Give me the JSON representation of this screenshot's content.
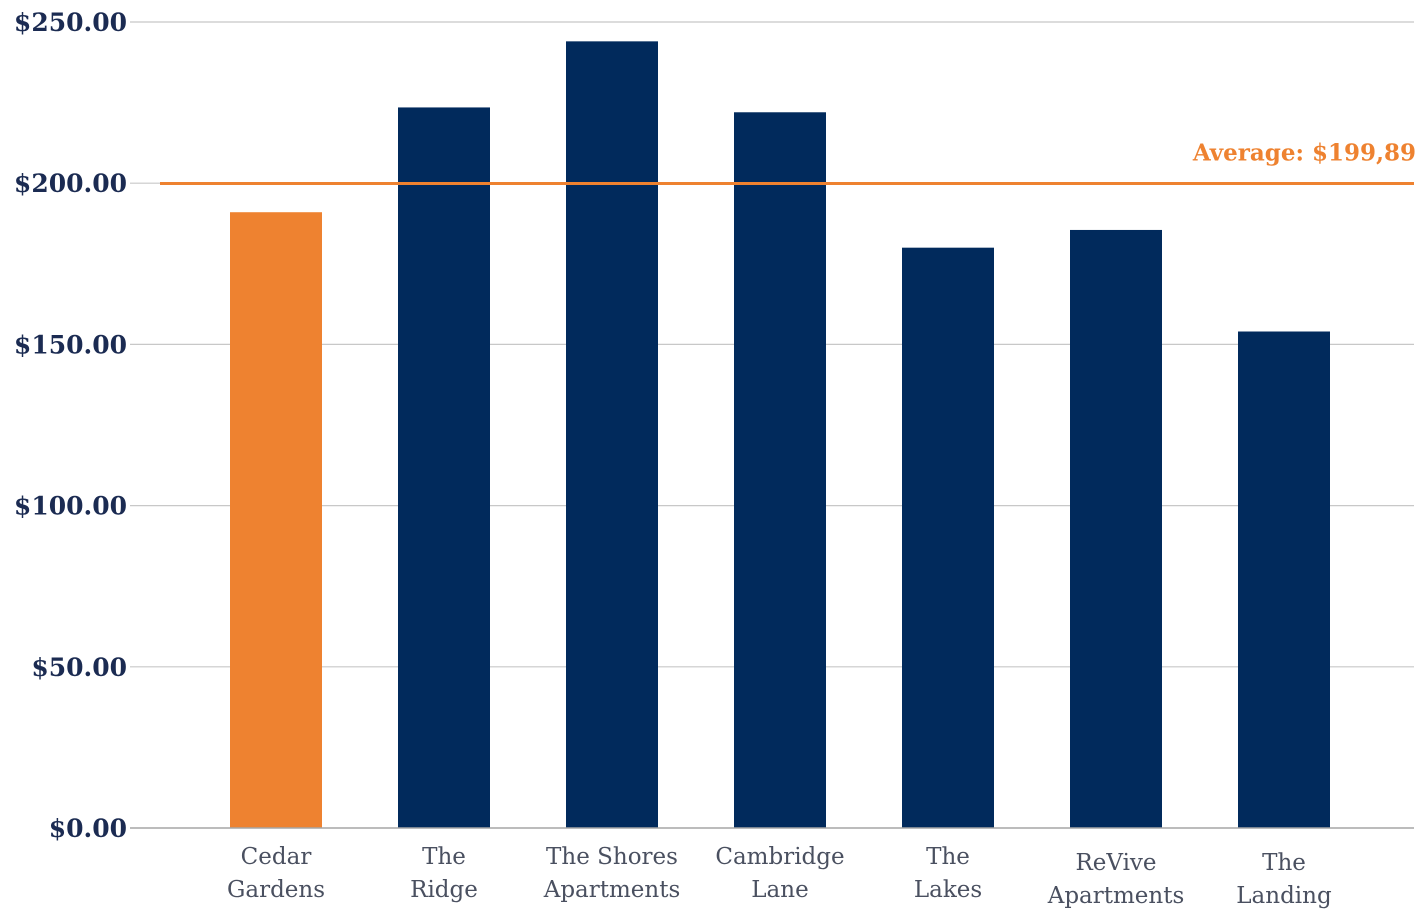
{
  "chart_data": {
    "type": "bar",
    "title": "",
    "xlabel": "",
    "ylabel": "",
    "categories": [
      [
        "Cedar",
        "Gardens"
      ],
      [
        "The",
        "Ridge"
      ],
      [
        "The Shores",
        "Apartments"
      ],
      [
        "Cambridge",
        "Lane"
      ],
      [
        "The",
        "Lakes"
      ],
      [
        "ReVive",
        "Apartments"
      ],
      [
        "The",
        "Landing"
      ]
    ],
    "values": [
      191,
      223.5,
      244,
      222,
      180,
      185.5,
      154
    ],
    "highlight_index": 0,
    "ylim": [
      0,
      250
    ],
    "yticks": [
      {
        "value": 0,
        "label": "$0.00"
      },
      {
        "value": 50,
        "label": "$50.00"
      },
      {
        "value": 100,
        "label": "$100.00"
      },
      {
        "value": 150,
        "label": "$150.00"
      },
      {
        "value": 200,
        "label": "$200.00"
      },
      {
        "value": 250,
        "label": "$250.00"
      }
    ],
    "grid": true,
    "reference_line": {
      "value": 199.89,
      "label": "Average: $199,89"
    },
    "colors": {
      "bar": "#012a5c",
      "highlight": "#ee8230",
      "reference_line": "#ee8230",
      "grid": "#c8c8c8",
      "axis": "#a6a6a6"
    }
  }
}
